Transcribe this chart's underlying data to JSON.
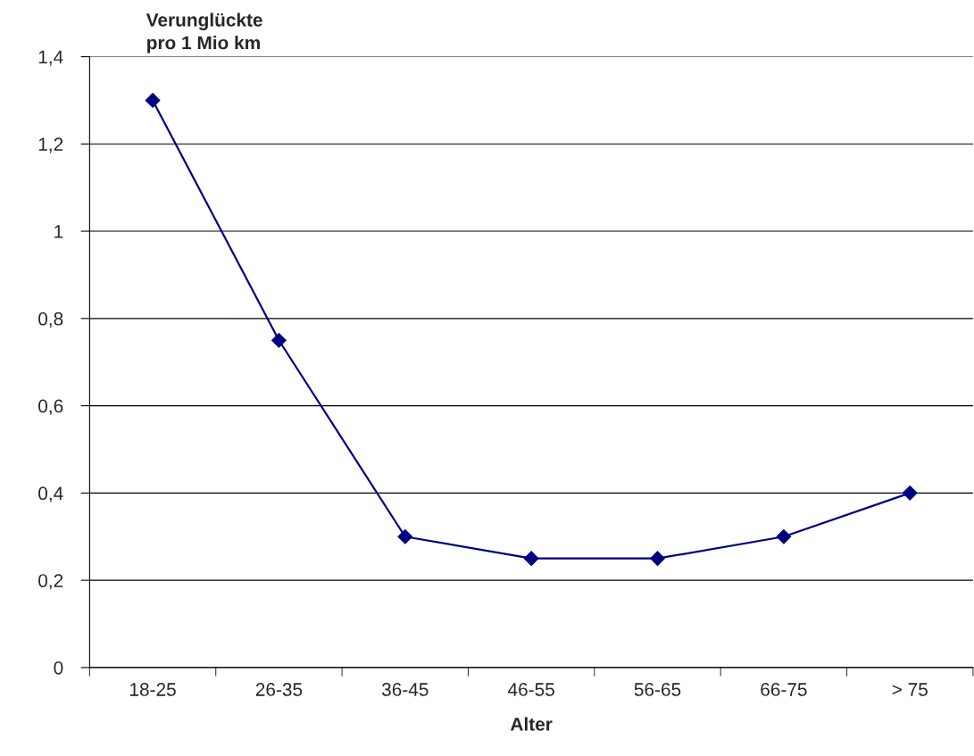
{
  "chart_data": {
    "type": "line",
    "ylabel": "Verunglückte\npro 1 Mio km",
    "xlabel": "Alter",
    "categories": [
      "18-25",
      "26-35",
      "36-45",
      "46-55",
      "56-65",
      "66-75",
      "> 75"
    ],
    "series": [
      {
        "color": "#000080",
        "values": [
          1.3,
          0.75,
          0.3,
          0.25,
          0.25,
          0.3,
          0.4
        ]
      }
    ],
    "ylim": [
      0,
      1.4
    ],
    "yticks": [
      0,
      {
        "value": 0.2,
        "label": "0,2"
      },
      {
        "value": 0.4,
        "label": "0,4"
      },
      {
        "value": 0.6,
        "label": "0,6"
      },
      {
        "value": 0.8,
        "label": "0,8"
      },
      1,
      {
        "value": 1.2,
        "label": "1,2"
      },
      {
        "value": 1.4,
        "label": "1,4"
      }
    ],
    "grid": "y",
    "marker": "diamond",
    "line_style": "solid",
    "legend": false
  }
}
